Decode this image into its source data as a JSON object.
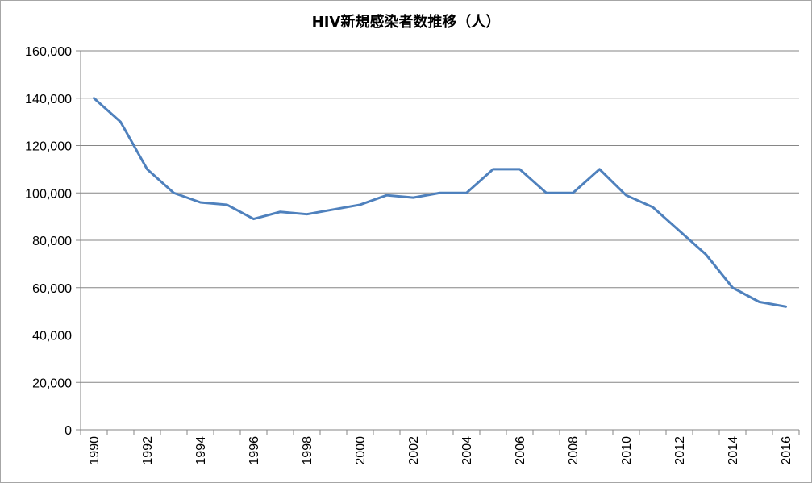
{
  "chart_data": {
    "type": "line",
    "title": "HIV新規感染者数推移（人）",
    "xlabel": "",
    "ylabel": "",
    "x": [
      1990,
      1991,
      1992,
      1993,
      1994,
      1995,
      1996,
      1997,
      1998,
      1999,
      2000,
      2001,
      2002,
      2003,
      2004,
      2005,
      2006,
      2007,
      2008,
      2009,
      2010,
      2011,
      2012,
      2013,
      2014,
      2015,
      2016
    ],
    "x_tick_labels": [
      "1990",
      "1992",
      "1994",
      "1996",
      "1998",
      "2000",
      "2002",
      "2004",
      "2006",
      "2008",
      "2010",
      "2012",
      "2014",
      "2016"
    ],
    "series": [
      {
        "values": [
          140000,
          130000,
          110000,
          100000,
          96000,
          95000,
          89000,
          92000,
          91000,
          93000,
          95000,
          99000,
          98000,
          100000,
          100000,
          110000,
          110000,
          100000,
          100000,
          110000,
          99000,
          94000,
          84000,
          74000,
          60000,
          54000,
          52000
        ],
        "color": "#4f81bd"
      }
    ],
    "ylim": [
      0,
      160000
    ],
    "y_ticks": [
      0,
      20000,
      40000,
      60000,
      80000,
      100000,
      120000,
      140000,
      160000
    ],
    "y_tick_labels": [
      "0",
      "20,000",
      "40,000",
      "60,000",
      "80,000",
      "100,000",
      "120,000",
      "140,000",
      "160,000"
    ],
    "grid": true,
    "legend": "none"
  }
}
